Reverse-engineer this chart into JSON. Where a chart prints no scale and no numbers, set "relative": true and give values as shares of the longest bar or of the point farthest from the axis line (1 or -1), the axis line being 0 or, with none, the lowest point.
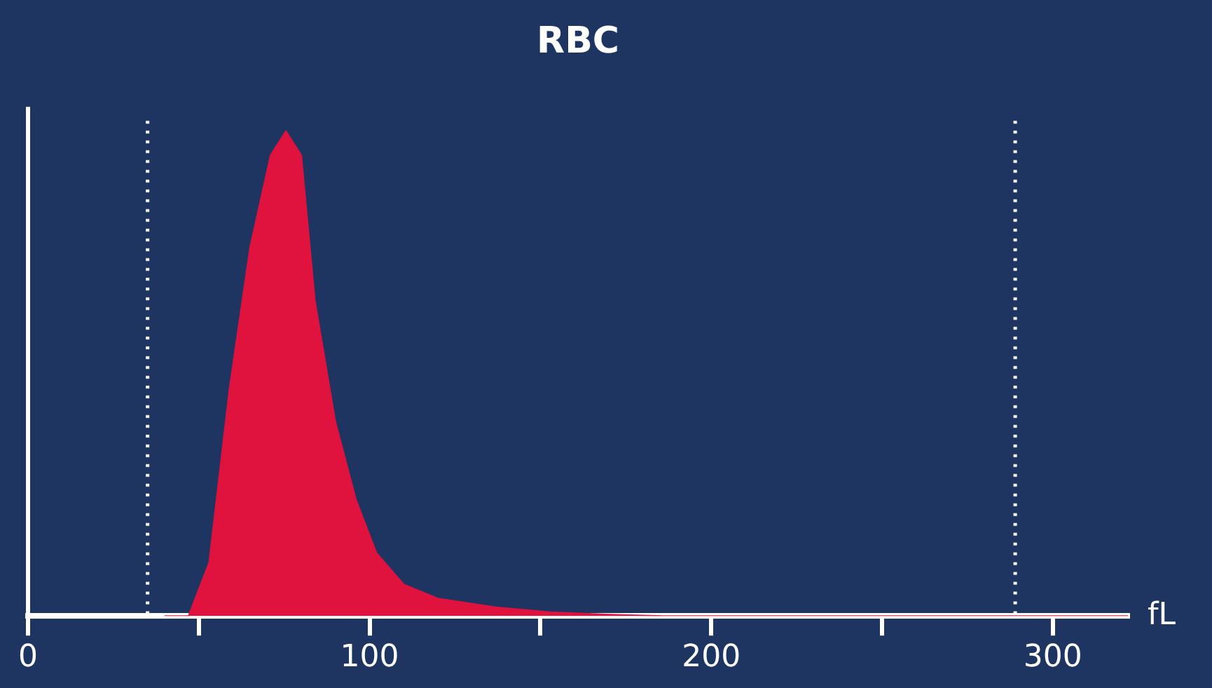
{
  "chart_data": {
    "type": "area",
    "title": "RBC",
    "xlabel": "fL",
    "relative": true,
    "x": [
      40,
      47,
      53,
      59,
      65,
      71,
      75.5,
      80,
      84,
      90,
      96,
      102,
      110,
      120,
      137,
      153,
      169,
      186,
      230,
      300,
      322
    ],
    "series": [
      {
        "color": "#e0123e",
        "values": [
          0,
          0,
          0.11,
          0.47,
          0.76,
          0.95,
          1,
          0.95,
          0.65,
          0.4,
          0.24,
          0.13,
          0.065,
          0.036,
          0.018,
          0.008,
          0.003,
          0,
          0,
          0,
          0
        ]
      }
    ],
    "xlim": [
      0,
      322
    ],
    "xticks": [
      0,
      {
        "value": 50,
        "label": null
      },
      100,
      {
        "value": 150,
        "label": null
      },
      200,
      {
        "value": 250,
        "label": null
      },
      300
    ],
    "ref_lines": [
      {
        "axis": "x",
        "value": 35,
        "color": "#ffffff",
        "line_style": "dotted"
      },
      {
        "axis": "x",
        "value": 289,
        "color": "#ffffff",
        "line_style": "dotted"
      }
    ],
    "grid": false,
    "legend": false
  }
}
